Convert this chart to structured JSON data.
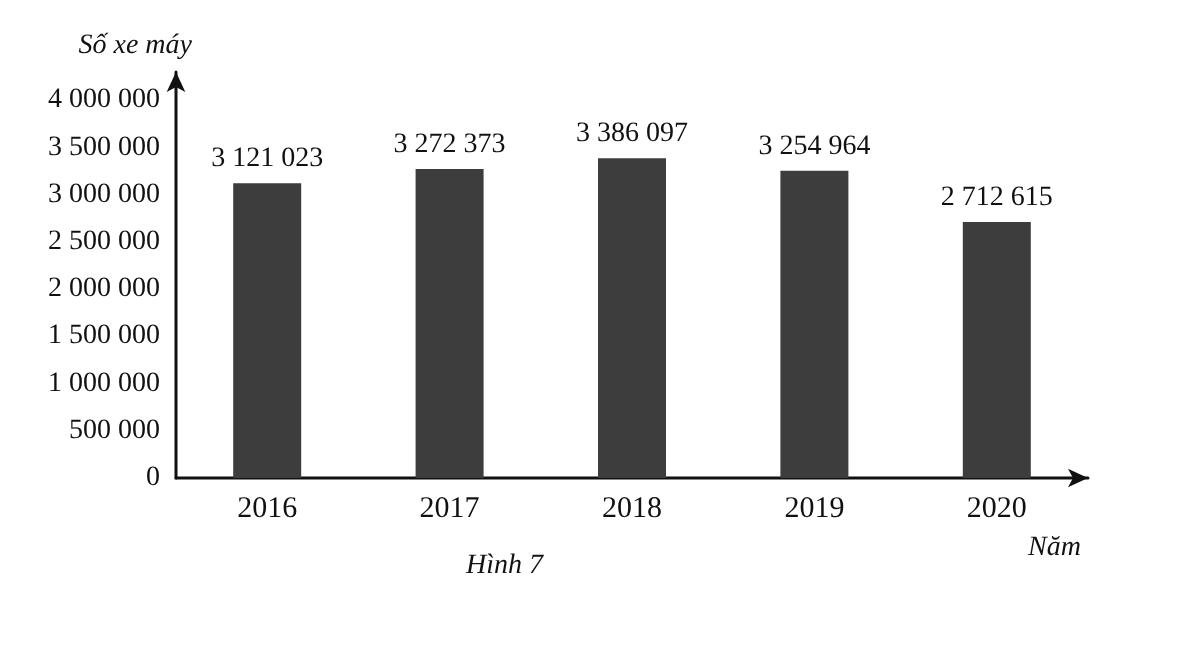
{
  "chart_data": {
    "type": "bar",
    "ylabel": "Số xe máy",
    "xlabel": "Năm",
    "annotations": [
      "Hình 7"
    ],
    "categories": [
      "2016",
      "2017",
      "2018",
      "2019",
      "2020"
    ],
    "values": [
      3121023,
      3272373,
      3386097,
      3254964,
      2712615
    ],
    "value_labels": [
      "3 121 023",
      "3 272 373",
      "3 386 097",
      "3 254 964",
      "2 712 615"
    ],
    "color": "#3d3d3d",
    "ylim": [
      0,
      4300000
    ],
    "yticks": [
      0,
      {
        "value": 500000,
        "label": "500 000"
      },
      {
        "value": 1000000,
        "label": "1 000 000"
      },
      {
        "value": 1500000,
        "label": "1 500 000"
      },
      {
        "value": 2000000,
        "label": "2 000 000"
      },
      {
        "value": 2500000,
        "label": "2 500 000"
      },
      {
        "value": 3000000,
        "label": "3 000 000"
      },
      {
        "value": 3500000,
        "label": "3 500 000"
      },
      {
        "value": 4000000,
        "label": "4 000 000"
      }
    ],
    "grid": false
  }
}
